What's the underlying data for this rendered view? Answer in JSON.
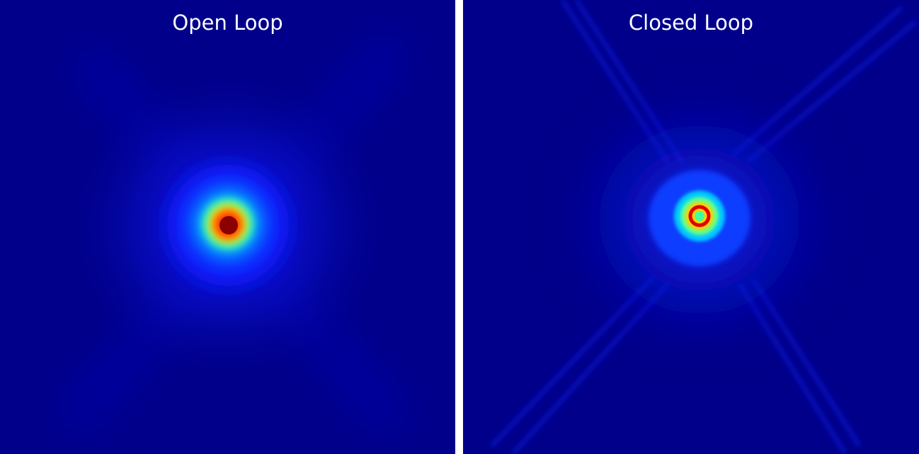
{
  "panels": [
    {
      "title": "Open Loop",
      "image_subject": "open-loop-psf",
      "background_color": "#00008a",
      "peak_color": "#8b0000"
    },
    {
      "title": "Closed Loop",
      "image_subject": "closed-loop-psf",
      "background_color": "#00008a",
      "peak_color": "#cc0000"
    }
  ]
}
